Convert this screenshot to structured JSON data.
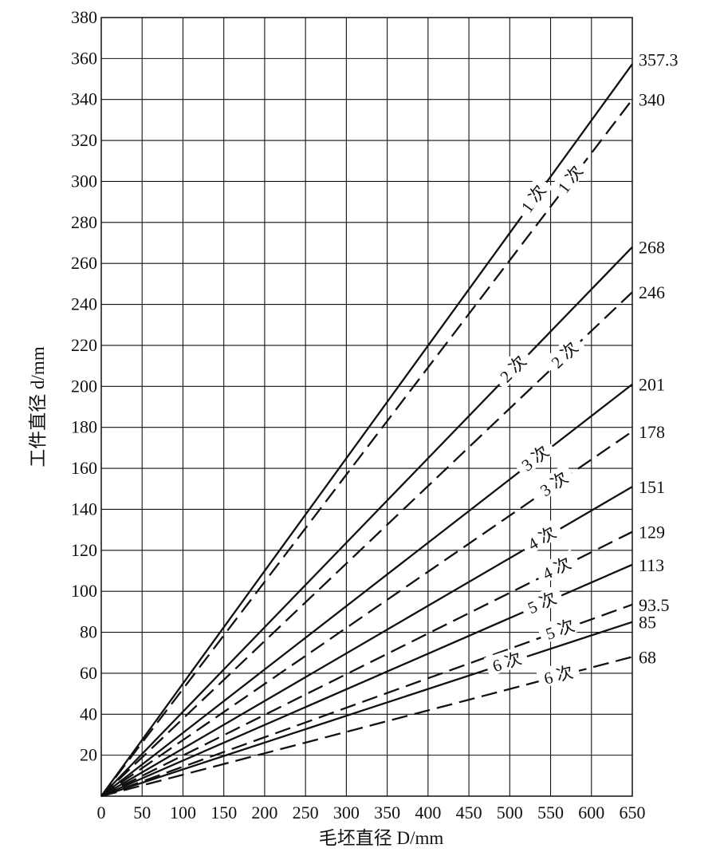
{
  "chart_data": {
    "type": "line",
    "title": "",
    "xlabel": "毛坯直径 D/mm",
    "ylabel": "工件直径 d/mm",
    "xlim": [
      0,
      650
    ],
    "ylim": [
      0,
      380
    ],
    "x_ticks": [
      0,
      50,
      100,
      150,
      200,
      250,
      300,
      350,
      400,
      450,
      500,
      550,
      600,
      650
    ],
    "y_ticks": [
      20,
      40,
      60,
      80,
      100,
      120,
      140,
      160,
      180,
      200,
      220,
      240,
      260,
      280,
      300,
      320,
      340,
      360,
      380
    ],
    "grid": true,
    "series": [
      {
        "name": "1 次",
        "style": "solid",
        "x": [
          0,
          650
        ],
        "y": [
          0,
          357.3
        ],
        "end_label": "357.3"
      },
      {
        "name": "1 次",
        "style": "dashed",
        "x": [
          0,
          650
        ],
        "y": [
          0,
          340
        ],
        "end_label": "340"
      },
      {
        "name": "2 次",
        "style": "solid",
        "x": [
          0,
          650
        ],
        "y": [
          0,
          268
        ],
        "end_label": "268"
      },
      {
        "name": "2 次",
        "style": "dashed",
        "x": [
          0,
          650
        ],
        "y": [
          0,
          246
        ],
        "end_label": "246"
      },
      {
        "name": "3 次",
        "style": "solid",
        "x": [
          0,
          650
        ],
        "y": [
          0,
          201
        ],
        "end_label": "201"
      },
      {
        "name": "3 次",
        "style": "dashed",
        "x": [
          0,
          650
        ],
        "y": [
          0,
          178
        ],
        "end_label": "178"
      },
      {
        "name": "4 次",
        "style": "solid",
        "x": [
          0,
          650
        ],
        "y": [
          0,
          151
        ],
        "end_label": "151"
      },
      {
        "name": "4 次",
        "style": "dashed",
        "x": [
          0,
          650
        ],
        "y": [
          0,
          129
        ],
        "end_label": "129"
      },
      {
        "name": "5 次",
        "style": "solid",
        "x": [
          0,
          650
        ],
        "y": [
          0,
          113
        ],
        "end_label": "113"
      },
      {
        "name": "5 次",
        "style": "dashed",
        "x": [
          0,
          650
        ],
        "y": [
          0,
          93.5
        ],
        "end_label": "93.5"
      },
      {
        "name": "6 次",
        "style": "solid",
        "x": [
          0,
          650
        ],
        "y": [
          0,
          85
        ],
        "end_label": "85"
      },
      {
        "name": "6 次",
        "style": "dashed",
        "x": [
          0,
          650
        ],
        "y": [
          0,
          68
        ],
        "end_label": "68"
      }
    ],
    "series_label_positions_x": [
      530,
      575,
      505,
      568,
      532,
      555,
      540,
      558,
      540,
      562,
      497,
      560
    ]
  }
}
